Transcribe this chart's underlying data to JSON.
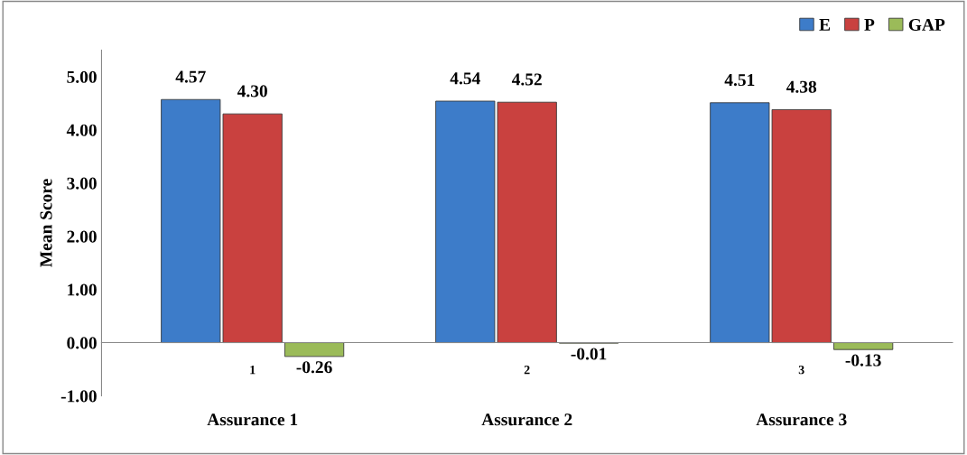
{
  "chart_data": {
    "type": "bar",
    "ylabel": "Mean Score",
    "categories": [
      "1",
      "2",
      "3"
    ],
    "series": [
      {
        "name": "E",
        "color": "#3d7cc9",
        "values": [
          4.57,
          4.54,
          4.51
        ],
        "value_labels": [
          "4.57",
          "4.54",
          "4.51"
        ]
      },
      {
        "name": "P",
        "color": "#c9413f",
        "values": [
          4.3,
          4.52,
          4.38
        ],
        "value_labels": [
          "4.30",
          "4.52",
          "4.38"
        ]
      },
      {
        "name": "GAP",
        "color": "#9bbb59",
        "values": [
          -0.26,
          -0.01,
          -0.13
        ],
        "value_labels": [
          "-0.26",
          "-0.01",
          "-0.13"
        ]
      }
    ],
    "ylim": [
      -1,
      5.5
    ],
    "yticks": [
      {
        "value": -1,
        "label": "-1.00"
      },
      {
        "value": 0,
        "label": "0.00"
      },
      {
        "value": 1,
        "label": "1.00"
      },
      {
        "value": 2,
        "label": "2.00"
      },
      {
        "value": 3,
        "label": "3.00"
      },
      {
        "value": 4,
        "label": "4.00"
      },
      {
        "value": 5,
        "label": "5.00"
      }
    ],
    "annotations": [
      "Assurance 1",
      "Assurance 2",
      "Assurance 3"
    ],
    "legend": "top right",
    "grid": false
  }
}
